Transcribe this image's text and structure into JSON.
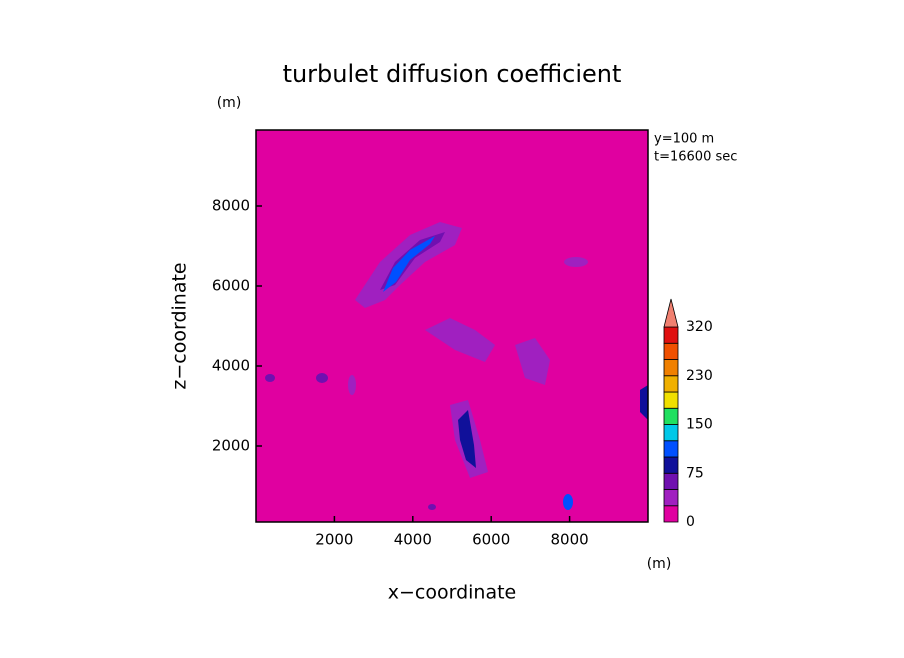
{
  "chart_data": {
    "type": "contour",
    "title": "turbulet diffusion coefficient",
    "x_label": "x−coordinate",
    "y_label": "z−coordinate",
    "x_unit": "(m)",
    "y_unit": "(m)",
    "annotations": [
      "y=100 m",
      "t=16600 sec"
    ],
    "xlim": [
      0,
      10000
    ],
    "xticks": [
      2000,
      4000,
      6000,
      8000
    ],
    "ylim": [
      100,
      9900
    ],
    "yticks": [
      2000,
      4000,
      6000,
      8000
    ],
    "background_color": "#e000a0",
    "colorbar": {
      "colors": [
        "#e000a0",
        "#a020c0",
        "#7010b0",
        "#10109a",
        "#0050ff",
        "#00c8e8",
        "#20e060",
        "#f0e000",
        "#f0b000",
        "#f08000",
        "#f05000",
        "#e01010"
      ],
      "extend_color": "#f08070",
      "ticks": [
        0,
        75,
        150,
        230,
        320
      ]
    }
  }
}
